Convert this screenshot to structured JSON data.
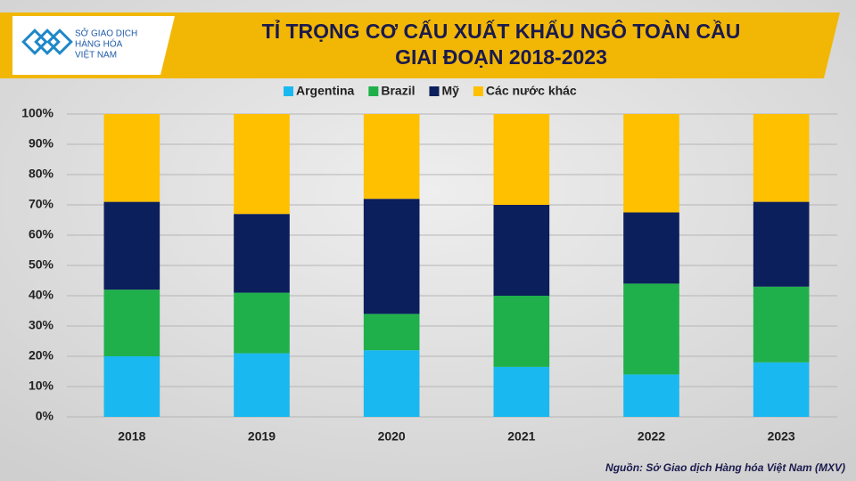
{
  "logo": {
    "lines": [
      "SỞ GIAO DỊCH",
      "HÀNG HÓA",
      "VIỆT NAM"
    ]
  },
  "chart_data": {
    "type": "stacked_bar",
    "title_lines": [
      "TỈ TRỌNG CƠ CẤU XUẤT KHẨU NGÔ TOÀN CẦU",
      "GIAI ĐOẠN 2018-2023"
    ],
    "categories": [
      "2018",
      "2019",
      "2020",
      "2021",
      "2022",
      "2023"
    ],
    "series": [
      {
        "name": "Argentina",
        "color": "#1ab8f0",
        "values": [
          20,
          21,
          22,
          16.5,
          14,
          18
        ]
      },
      {
        "name": "Brazil",
        "color": "#1fb04b",
        "values": [
          22,
          20,
          12,
          23.5,
          30,
          25
        ]
      },
      {
        "name": "Mỹ",
        "color": "#0b1f5c",
        "values": [
          29,
          26,
          38,
          30,
          23.5,
          28
        ]
      },
      {
        "name": "Các nước khác",
        "color": "#ffc000",
        "values": [
          29,
          33,
          28,
          30,
          32.5,
          29
        ]
      }
    ],
    "ylim": [
      0,
      100
    ],
    "yticks": [
      {
        "value": 0,
        "label": "0%"
      },
      {
        "value": 10,
        "label": "10%"
      },
      {
        "value": 20,
        "label": "20%"
      },
      {
        "value": 30,
        "label": "30%"
      },
      {
        "value": 40,
        "label": "40%"
      },
      {
        "value": 50,
        "label": "50%"
      },
      {
        "value": 60,
        "label": "60%"
      },
      {
        "value": 70,
        "label": "70%"
      },
      {
        "value": 80,
        "label": "80%"
      },
      {
        "value": 90,
        "label": "90%"
      },
      {
        "value": 100,
        "label": "100%"
      }
    ],
    "grid": true,
    "legend": "top",
    "source": "Nguồn: Sở Giao dịch Hàng hóa Việt Nam (MXV)"
  }
}
